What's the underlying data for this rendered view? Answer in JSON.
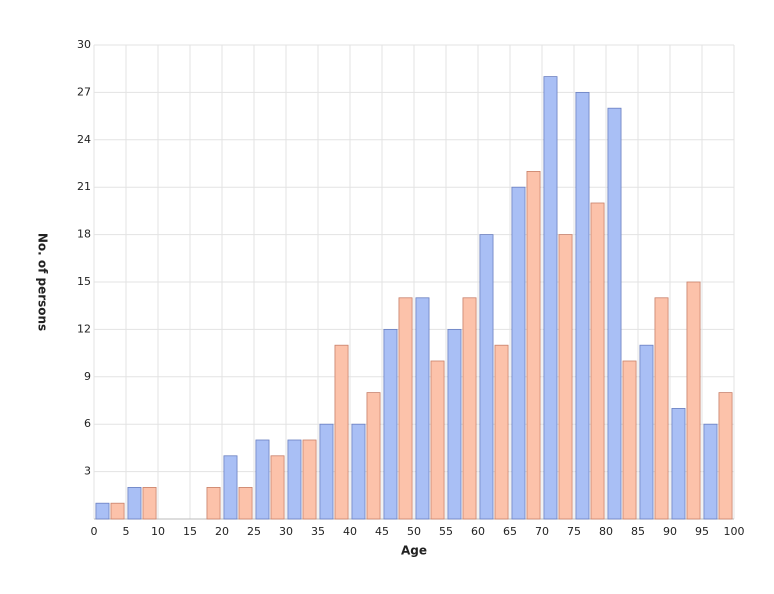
{
  "chart_data": {
    "type": "histogram",
    "x_label": "Age",
    "y_label": "No. of persons",
    "bins": [
      0,
      5,
      10,
      15,
      20,
      25,
      30,
      35,
      40,
      45,
      50,
      55,
      60,
      65,
      70,
      75,
      80,
      85,
      90,
      95,
      100
    ],
    "series": [
      {
        "color": "#a9bff5",
        "values": [
          1,
          2,
          0,
          0,
          4,
          5,
          5,
          6,
          6,
          12,
          14,
          12,
          18,
          21,
          28,
          27,
          26,
          11,
          7,
          6
        ]
      },
      {
        "color": "#fcc2aa",
        "values": [
          1,
          2,
          0,
          2,
          2,
          4,
          5,
          11,
          8,
          14,
          10,
          14,
          11,
          22,
          18,
          20,
          10,
          14,
          15,
          8
        ]
      }
    ],
    "xlim": [
      0,
      100
    ],
    "xticks": [
      0,
      5,
      10,
      15,
      20,
      25,
      30,
      35,
      40,
      45,
      50,
      55,
      60,
      65,
      70,
      75,
      80,
      85,
      90,
      95,
      100
    ],
    "ylim": [
      0,
      30
    ],
    "yticks": [
      3,
      6,
      9,
      12,
      15,
      18,
      21,
      24,
      27,
      30
    ],
    "grid": true
  }
}
